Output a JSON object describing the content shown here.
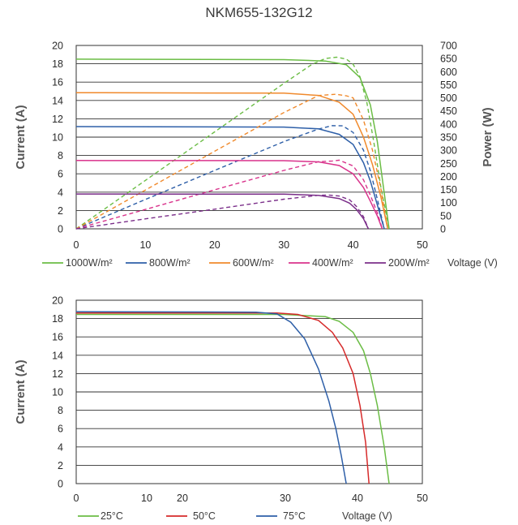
{
  "title": "NKM655-132G12",
  "chart_data": [
    {
      "type": "line",
      "title": "NKM655-132G12",
      "xlabel": "Voltage (V)",
      "ylabel": "Current (A)",
      "y2label": "Power (W)",
      "xlim": [
        0,
        50
      ],
      "ylim": [
        0,
        20
      ],
      "y2lim": [
        0,
        700
      ],
      "xticks": [
        "0",
        "10",
        "20",
        "30",
        "40",
        "50"
      ],
      "yticks": [
        "0",
        "2",
        "4",
        "6",
        "8",
        "10",
        "12",
        "14",
        "16",
        "18",
        "20"
      ],
      "y2ticks": [
        "0",
        "50",
        "100",
        "150",
        "200",
        "250",
        "300",
        "350",
        "400",
        "450",
        "500",
        "550",
        "600",
        "650",
        "700"
      ],
      "grid": "horizontal",
      "legend_position": "bottom",
      "legend_suffix": "Voltage (V)",
      "series": [
        {
          "name": "1000W/m²",
          "color": "#6bbd45",
          "current": [
            [
              0,
              18.5
            ],
            [
              30,
              18.45
            ],
            [
              36,
              18.3
            ],
            [
              39,
              17.9
            ],
            [
              41,
              16.5
            ],
            [
              42.5,
              13.5
            ],
            [
              43.5,
              9.5
            ],
            [
              44.3,
              5
            ],
            [
              45.2,
              0
            ]
          ],
          "power": [
            [
              0,
              0
            ],
            [
              10,
              185
            ],
            [
              20,
              370
            ],
            [
              30,
              555
            ],
            [
              34,
              627
            ],
            [
              36,
              650
            ],
            [
              37.6,
              655
            ],
            [
              39,
              648
            ],
            [
              40,
              628
            ],
            [
              41,
              580
            ],
            [
              42,
              480
            ],
            [
              43,
              330
            ],
            [
              44,
              160
            ],
            [
              45.2,
              0
            ]
          ]
        },
        {
          "name": "800W/m²",
          "color": "#2e5fa8",
          "current": [
            [
              0,
              11.15
            ],
            [
              30,
              11.1
            ],
            [
              35,
              10.9
            ],
            [
              38,
              10.3
            ],
            [
              40,
              9.2
            ],
            [
              41.5,
              7.2
            ],
            [
              42.5,
              5.2
            ],
            [
              43.5,
              2.6
            ],
            [
              44.5,
              0
            ]
          ],
          "power": [
            [
              0,
              0
            ],
            [
              10,
              112
            ],
            [
              20,
              223
            ],
            [
              30,
              333
            ],
            [
              35,
              381
            ],
            [
              37,
              394
            ],
            [
              38.5,
              393
            ],
            [
              40,
              368
            ],
            [
              41.5,
              300
            ],
            [
              42.5,
              221
            ],
            [
              43.5,
              113
            ],
            [
              44.5,
              0
            ]
          ]
        },
        {
          "name": "600W/m²",
          "color": "#f0892b",
          "current": [
            [
              0,
              14.85
            ],
            [
              30,
              14.8
            ],
            [
              35,
              14.55
            ],
            [
              38,
              13.8
            ],
            [
              40,
              12.5
            ],
            [
              41.5,
              10
            ],
            [
              42.8,
              7
            ],
            [
              44,
              3.5
            ],
            [
              45,
              0
            ]
          ],
          "power": [
            [
              0,
              0
            ],
            [
              10,
              148
            ],
            [
              20,
              296
            ],
            [
              30,
              444
            ],
            [
              35,
              509
            ],
            [
              37.5,
              514
            ],
            [
              39,
              508
            ],
            [
              40,
              500
            ],
            [
              41.5,
              415
            ],
            [
              42.8,
              300
            ],
            [
              44,
              154
            ],
            [
              45,
              0
            ]
          ]
        },
        {
          "name": "400W/m²",
          "color": "#d9338c",
          "current": [
            [
              0,
              7.45
            ],
            [
              30,
              7.43
            ],
            [
              35,
              7.3
            ],
            [
              38,
              6.9
            ],
            [
              40,
              6
            ],
            [
              41.5,
              4.5
            ],
            [
              42.5,
              3
            ],
            [
              43.5,
              1.4
            ],
            [
              44.2,
              0
            ]
          ],
          "power": [
            [
              0,
              0
            ],
            [
              10,
              74
            ],
            [
              20,
              149
            ],
            [
              30,
              223
            ],
            [
              35,
              256
            ],
            [
              37,
              259
            ],
            [
              38,
              262
            ],
            [
              40,
              240
            ],
            [
              41.5,
              187
            ],
            [
              42.5,
              128
            ],
            [
              43.5,
              61
            ],
            [
              44.2,
              0
            ]
          ]
        },
        {
          "name": "200W/m²",
          "color": "#7b2f8a",
          "current": [
            [
              0,
              3.8
            ],
            [
              30,
              3.78
            ],
            [
              35,
              3.65
            ],
            [
              38,
              3.3
            ],
            [
              39.5,
              2.8
            ],
            [
              40.5,
              2.1
            ],
            [
              41.5,
              1.1
            ],
            [
              42.2,
              0
            ]
          ],
          "power": [
            [
              0,
              0
            ],
            [
              10,
              38
            ],
            [
              20,
              75
            ],
            [
              30,
              113
            ],
            [
              35,
              128
            ],
            [
              36.5,
              129
            ],
            [
              38,
              125
            ],
            [
              39.5,
              111
            ],
            [
              40.5,
              85
            ],
            [
              41.5,
              46
            ],
            [
              42.2,
              0
            ]
          ]
        }
      ]
    },
    {
      "type": "line",
      "xlabel": "Voltage (V)",
      "ylabel": "Current (A)",
      "xlim": [
        0,
        50
      ],
      "ylim": [
        0,
        20
      ],
      "xticks": [
        "0",
        "10",
        "20",
        "30",
        "40",
        "50"
      ],
      "yticks": [
        "0",
        "2",
        "4",
        "6",
        "8",
        "10",
        "12",
        "14",
        "16",
        "18",
        "20"
      ],
      "grid": "horizontal",
      "legend_position": "bottom",
      "legend_suffix": "Voltage (V)",
      "series": [
        {
          "name": "25°C",
          "color": "#6bbd45",
          "current": [
            [
              0,
              18.45
            ],
            [
              30,
              18.45
            ],
            [
              36,
              18.2
            ],
            [
              38,
              17.7
            ],
            [
              40,
              16.5
            ],
            [
              41.5,
              14.5
            ],
            [
              42.5,
              12
            ],
            [
              43.5,
              8.5
            ],
            [
              44.5,
              4
            ],
            [
              45.2,
              0
            ]
          ]
        },
        {
          "name": "50°C",
          "color": "#d62a2a",
          "current": [
            [
              0,
              18.6
            ],
            [
              29,
              18.6
            ],
            [
              32,
              18.45
            ],
            [
              35,
              17.8
            ],
            [
              37,
              16.5
            ],
            [
              38.5,
              14.8
            ],
            [
              40,
              12
            ],
            [
              41,
              8.5
            ],
            [
              41.8,
              4.5
            ],
            [
              42.3,
              0
            ]
          ]
        },
        {
          "name": "75°C",
          "color": "#2e5fa8",
          "current": [
            [
              0,
              18.75
            ],
            [
              26,
              18.7
            ],
            [
              29,
              18.5
            ],
            [
              31,
              17.6
            ],
            [
              33,
              15.8
            ],
            [
              35,
              12.5
            ],
            [
              36.5,
              9
            ],
            [
              37.5,
              6
            ],
            [
              38.3,
              3
            ],
            [
              39,
              0
            ]
          ]
        }
      ]
    }
  ]
}
